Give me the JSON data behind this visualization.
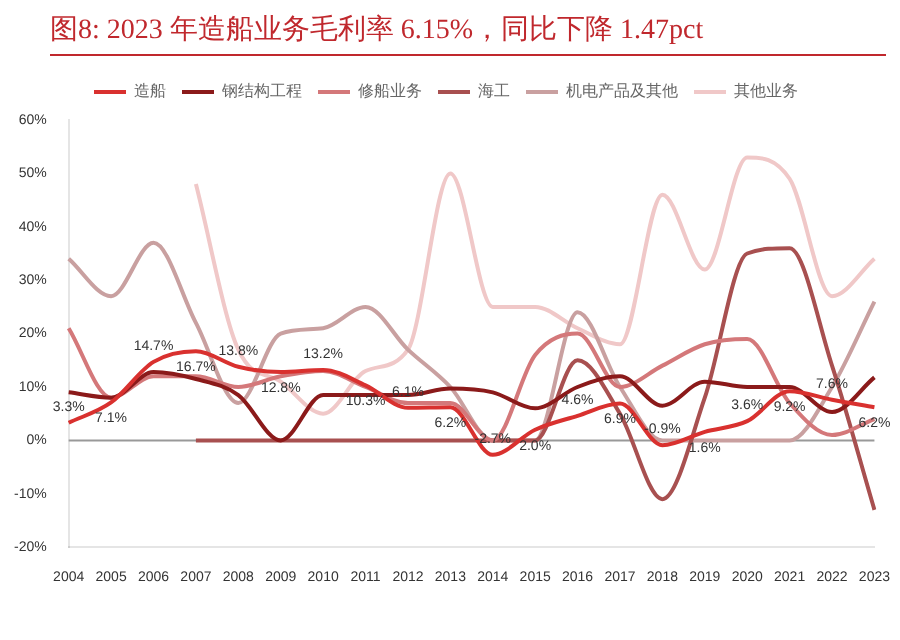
{
  "chart_data": {
    "type": "line",
    "title": "图8:  2023 年造船业务毛利率 6.15%，同比下降 1.47pct",
    "categories": [
      "2004",
      "2005",
      "2006",
      "2007",
      "2008",
      "2009",
      "2010",
      "2011",
      "2012",
      "2013",
      "2014",
      "2015",
      "2016",
      "2017",
      "2018",
      "2019",
      "2020",
      "2021",
      "2022",
      "2023"
    ],
    "series": [
      {
        "name": "造船",
        "color": "#d9312f",
        "values": [
          3.3,
          7.1,
          14.7,
          16.7,
          13.8,
          12.8,
          13.2,
          10.3,
          6.1,
          6.2,
          -2.7,
          2.0,
          4.6,
          6.9,
          -0.9,
          1.6,
          3.6,
          9.2,
          7.6,
          6.2
        ],
        "value_labels": [
          "3.3%",
          "7.1%",
          "14.7%",
          "16.7%",
          "13.8%",
          "12.8%",
          "13.2%",
          "10.3%",
          "6.1%",
          "6.2%",
          "-2.7%",
          "2.0%",
          "4.6%",
          "6.9%",
          "-0.9%",
          "1.6%",
          "3.6%",
          "9.2%",
          "7.6%",
          "6.2%"
        ]
      },
      {
        "name": "钢结构工程",
        "color": "#8b1a1a",
        "values": [
          9,
          8,
          12.8,
          11.5,
          8.5,
          0,
          8.5,
          8.5,
          8.5,
          9.7,
          9,
          6,
          10,
          12,
          6.5,
          11,
          10,
          10,
          5.3,
          11.8
        ]
      },
      {
        "name": "修船业务",
        "color": "#d4787a",
        "values": [
          21,
          8,
          12,
          12,
          10,
          12,
          13,
          10,
          7,
          7,
          0,
          16,
          20,
          10,
          14,
          18,
          19,
          7,
          1,
          4
        ]
      },
      {
        "name": "海工",
        "color": "#a85050",
        "values": [
          null,
          null,
          null,
          0,
          0,
          0,
          0,
          0,
          0,
          0,
          0,
          0,
          15,
          5,
          -11,
          8,
          35,
          36,
          14,
          -13
        ]
      },
      {
        "name": "机电产品及其他",
        "color": "#c9a0a0",
        "values": [
          34,
          27,
          37,
          22,
          7,
          20,
          21,
          25,
          17,
          10,
          0,
          0,
          24,
          10,
          0,
          0,
          0,
          0,
          10,
          26
        ]
      },
      {
        "name": "其他业务",
        "color": "#f0c8c8",
        "values": [
          null,
          null,
          null,
          48,
          17,
          11,
          5,
          13,
          17,
          50,
          25,
          25,
          21,
          18,
          46,
          32,
          53,
          49,
          27,
          34
        ]
      }
    ],
    "ylim": [
      -20,
      60
    ],
    "yticks": [
      {
        "value": -20,
        "label": "-20%"
      },
      {
        "value": -10,
        "label": "-10%"
      },
      {
        "value": 0,
        "label": "0%"
      },
      {
        "value": 10,
        "label": "10%"
      },
      {
        "value": 20,
        "label": "20%"
      },
      {
        "value": 30,
        "label": "30%"
      },
      {
        "value": 40,
        "label": "40%"
      },
      {
        "value": 50,
        "label": "50%"
      },
      {
        "value": 60,
        "label": "60%"
      }
    ],
    "ref_lines": [
      {
        "axis": "y",
        "value": 0,
        "color": "#999999"
      }
    ],
    "grid": false,
    "legend": "top",
    "marker": "none",
    "line_style": "solid"
  }
}
